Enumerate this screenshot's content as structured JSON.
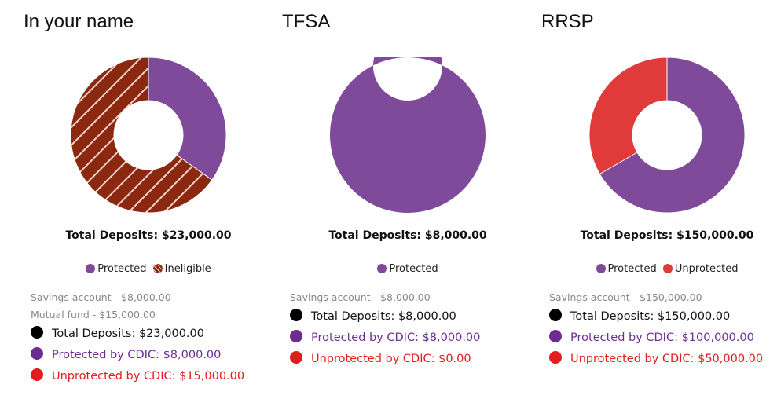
{
  "colors": {
    "protected": "#7f4a9a",
    "ineligible": "#8b2810",
    "unprotected": "#e03a3a",
    "total_dot": "#000000",
    "protected_text": "#6e2c91",
    "unprotected_text": "#e01e1e"
  },
  "chart_data": [
    {
      "type": "pie",
      "title": "In your name",
      "categories": [
        "Protected",
        "Ineligible"
      ],
      "values": [
        8000,
        15000
      ],
      "series_colors": [
        "#7f4a9a",
        "#8b2810"
      ],
      "patterns": [
        "solid",
        "hatched"
      ],
      "donut": true
    },
    {
      "type": "pie",
      "title": "TFSA",
      "categories": [
        "Protected"
      ],
      "values": [
        8000
      ],
      "series_colors": [
        "#7f4a9a"
      ],
      "patterns": [
        "solid"
      ],
      "donut": true
    },
    {
      "type": "pie",
      "title": "RRSP",
      "categories": [
        "Protected",
        "Unprotected"
      ],
      "values": [
        100000,
        50000
      ],
      "series_colors": [
        "#7f4a9a",
        "#e03a3a"
      ],
      "patterns": [
        "solid",
        "solid"
      ],
      "donut": true
    }
  ],
  "panels": [
    {
      "title": "In your name",
      "total": "Total Deposits: $23,000.00",
      "legend": [
        {
          "label": "Protected",
          "kind": "protected"
        },
        {
          "label": "Ineligible",
          "kind": "ineligible"
        }
      ],
      "accounts": [
        "Savings account - $8,000.00",
        "Mutual fund - $15,000.00"
      ],
      "summary": {
        "total": "Total Deposits: $23,000.00",
        "protected": "Protected by CDIC: $8,000.00",
        "unprotected": "Unprotected by CDIC: $15,000.00"
      }
    },
    {
      "title": "TFSA",
      "total": "Total Deposits: $8,000.00",
      "legend": [
        {
          "label": "Protected",
          "kind": "protected"
        }
      ],
      "accounts": [
        "Savings account - $8,000.00"
      ],
      "summary": {
        "total": "Total Deposits: $8,000.00",
        "protected": "Protected by CDIC: $8,000.00",
        "unprotected": "Unprotected by CDIC: $0.00"
      }
    },
    {
      "title": "RRSP",
      "total": "Total Deposits: $150,000.00",
      "legend": [
        {
          "label": "Protected",
          "kind": "protected"
        },
        {
          "label": "Unprotected",
          "kind": "unprotected"
        }
      ],
      "accounts": [
        "Savings account - $150,000.00"
      ],
      "summary": {
        "total": "Total Deposits: $150,000.00",
        "protected": "Protected by CDIC: $100,000.00",
        "unprotected": "Unprotected by CDIC: $50,000.00"
      }
    }
  ]
}
